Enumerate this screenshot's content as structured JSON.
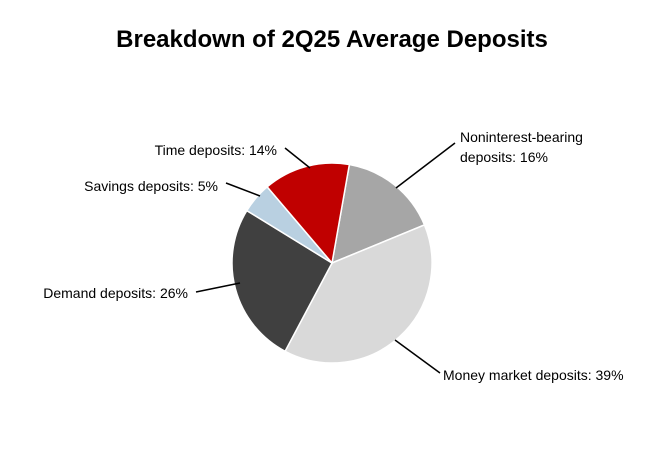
{
  "chart_data": {
    "type": "pie",
    "title": "Breakdown of 2Q25 Average Deposits",
    "categories": [
      "Noninterest-bearing deposits",
      "Money market deposits",
      "Demand deposits",
      "Savings deposits",
      "Time deposits"
    ],
    "values": [
      16,
      39,
      26,
      5,
      14
    ],
    "value_labels": [
      "Noninterest-bearing deposits: 16%",
      "Money market deposits: 39%",
      "Demand deposits: 26%",
      "Savings deposits: 5%",
      "Time deposits: 14%"
    ],
    "colors": [
      "#a6a6a6",
      "#d9d9d9",
      "#404040",
      "#b9d0e1",
      "#c00000"
    ]
  }
}
